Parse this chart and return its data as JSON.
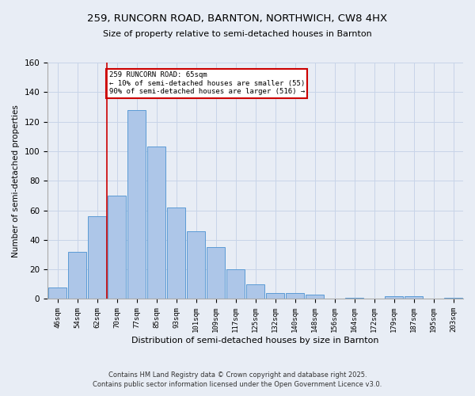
{
  "title_line1": "259, RUNCORN ROAD, BARNTON, NORTHWICH, CW8 4HX",
  "title_line2": "Size of property relative to semi-detached houses in Barnton",
  "xlabel": "Distribution of semi-detached houses by size in Barnton",
  "ylabel": "Number of semi-detached properties",
  "bar_labels": [
    "46sqm",
    "54sqm",
    "62sqm",
    "70sqm",
    "77sqm",
    "85sqm",
    "93sqm",
    "101sqm",
    "109sqm",
    "117sqm",
    "125sqm",
    "132sqm",
    "140sqm",
    "148sqm",
    "156sqm",
    "164sqm",
    "172sqm",
    "179sqm",
    "187sqm",
    "195sqm",
    "203sqm"
  ],
  "bar_values": [
    8,
    32,
    56,
    70,
    128,
    103,
    62,
    46,
    35,
    20,
    10,
    4,
    4,
    3,
    0,
    1,
    0,
    2,
    2,
    0,
    1
  ],
  "bar_color": "#adc6e8",
  "bar_edge_color": "#5b9bd5",
  "red_line_x": 2.5,
  "annotation_title": "259 RUNCORN ROAD: 65sqm",
  "annotation_line1": "← 10% of semi-detached houses are smaller (55)",
  "annotation_line2": "90% of semi-detached houses are larger (516) →",
  "annotation_box_color": "#ffffff",
  "annotation_box_edge": "#cc0000",
  "red_line_color": "#cc0000",
  "grid_color": "#c8d4e8",
  "bg_color": "#e8edf5",
  "ylim": [
    0,
    160
  ],
  "yticks": [
    0,
    20,
    40,
    60,
    80,
    100,
    120,
    140,
    160
  ],
  "footer_line1": "Contains HM Land Registry data © Crown copyright and database right 2025.",
  "footer_line2": "Contains public sector information licensed under the Open Government Licence v3.0."
}
